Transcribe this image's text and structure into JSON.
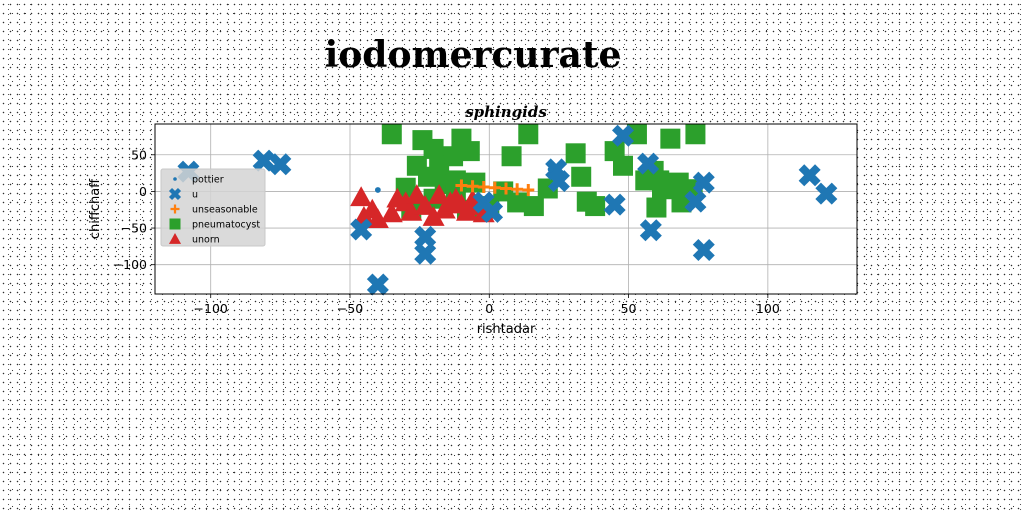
{
  "chart_data": {
    "type": "scatter",
    "suptitle": "iodomercurate",
    "title": "sphingids",
    "xlabel": "rishtadar",
    "ylabel": "chiffchaff",
    "xlim": [
      -120,
      132
    ],
    "ylim": [
      -140,
      92
    ],
    "xticks": [
      -100,
      -50,
      0,
      50,
      100
    ],
    "xtick_labels": [
      "−100",
      "−50",
      "0",
      "50",
      "100"
    ],
    "yticks": [
      -100,
      -50,
      0,
      50
    ],
    "ytick_labels": [
      "−100",
      "−50",
      "0",
      "50"
    ],
    "grid": true,
    "legend_position": "center-left",
    "series": [
      {
        "name": "pottier",
        "marker": "point",
        "color": "#1f77b4",
        "points": [
          [
            -107,
            28
          ],
          [
            -80,
            40
          ],
          [
            -40,
            2
          ],
          [
            -2,
            -12
          ],
          [
            22,
            30
          ],
          [
            47,
            70
          ],
          [
            58,
            40
          ],
          [
            75,
            10
          ]
        ]
      },
      {
        "name": "u",
        "marker": "x",
        "color": "#1f77b4",
        "points": [
          [
            -108,
            27
          ],
          [
            -81,
            42
          ],
          [
            -75,
            37
          ],
          [
            -46,
            -52
          ],
          [
            -40,
            -127
          ],
          [
            -23,
            -62
          ],
          [
            -23,
            -85
          ],
          [
            -2,
            -15
          ],
          [
            1,
            -28
          ],
          [
            24,
            30
          ],
          [
            25,
            14
          ],
          [
            45,
            -18
          ],
          [
            48,
            76
          ],
          [
            57,
            38
          ],
          [
            58,
            -53
          ],
          [
            74,
            -14
          ],
          [
            77,
            12
          ],
          [
            77,
            -80
          ],
          [
            115,
            22
          ],
          [
            121,
            -3
          ]
        ]
      },
      {
        "name": "unseasonable",
        "marker": "plus",
        "color": "#ff7f0e",
        "points": [
          [
            -10,
            8
          ],
          [
            -6,
            7
          ],
          [
            -2,
            6
          ],
          [
            2,
            5
          ],
          [
            6,
            4
          ],
          [
            10,
            3
          ],
          [
            14,
            2
          ]
        ]
      },
      {
        "name": "pneumatocyst",
        "marker": "square",
        "color": "#2ca02c",
        "points": [
          [
            -35,
            78
          ],
          [
            -24,
            70
          ],
          [
            -20,
            58
          ],
          [
            -13,
            48
          ],
          [
            -10,
            72
          ],
          [
            -7,
            55
          ],
          [
            8,
            48
          ],
          [
            14,
            78
          ],
          [
            21,
            4
          ],
          [
            31,
            52
          ],
          [
            33,
            20
          ],
          [
            35,
            -14
          ],
          [
            38,
            -20
          ],
          [
            45,
            55
          ],
          [
            48,
            35
          ],
          [
            53,
            78
          ],
          [
            56,
            15
          ],
          [
            59,
            28
          ],
          [
            60,
            -22
          ],
          [
            61,
            15
          ],
          [
            62,
            3
          ],
          [
            65,
            72
          ],
          [
            68,
            12
          ],
          [
            69,
            -15
          ],
          [
            73,
            3
          ],
          [
            74,
            78
          ],
          [
            -18,
            35
          ],
          [
            -26,
            35
          ],
          [
            -22,
            20
          ],
          [
            -30,
            5
          ],
          [
            -16,
            10
          ],
          [
            -12,
            15
          ],
          [
            -5,
            12
          ],
          [
            -20,
            -10
          ],
          [
            -12,
            -5
          ],
          [
            5,
            0
          ],
          [
            10,
            -15
          ],
          [
            16,
            -20
          ],
          [
            0,
            -20
          ],
          [
            -28,
            -25
          ],
          [
            -8,
            -25
          ]
        ]
      },
      {
        "name": "unorn",
        "marker": "triangle",
        "color": "#d62728",
        "points": [
          [
            -46,
            -8
          ],
          [
            -45,
            -35
          ],
          [
            -42,
            -25
          ],
          [
            -40,
            -38
          ],
          [
            -35,
            -30
          ],
          [
            -33,
            -10
          ],
          [
            -30,
            -15
          ],
          [
            -28,
            -28
          ],
          [
            -26,
            -5
          ],
          [
            -23,
            -20
          ],
          [
            -20,
            -35
          ],
          [
            -18,
            -5
          ],
          [
            -16,
            -25
          ],
          [
            -14,
            -15
          ],
          [
            -12,
            -10
          ],
          [
            -10,
            -18
          ],
          [
            -6,
            -12
          ],
          [
            -4,
            -20
          ],
          [
            -2,
            -30
          ],
          [
            -1,
            -25
          ],
          [
            -8,
            -28
          ]
        ]
      }
    ]
  }
}
